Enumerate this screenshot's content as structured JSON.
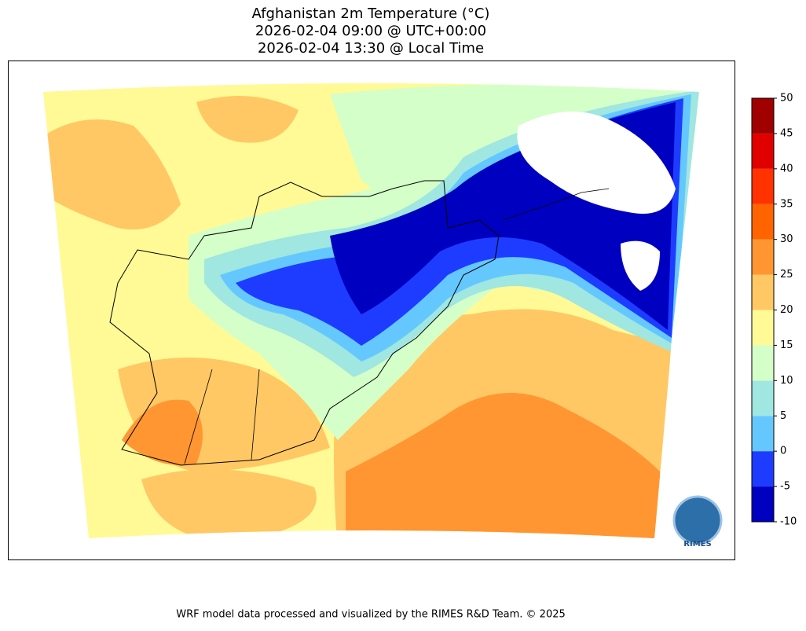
{
  "header": {
    "title_lines": [
      "Afghanistan 2m Temperature (°C)",
      "2026-02-04 09:00 @ UTC+00:00",
      "2026-02-04 13:30 @ Local Time"
    ]
  },
  "colorbar": {
    "ticks": [
      -10,
      -5,
      0,
      5,
      10,
      15,
      20,
      25,
      30,
      35,
      40,
      45,
      50
    ],
    "colors": [
      "#0000c0",
      "#1e3cff",
      "#64c8ff",
      "#a0e6e1",
      "#d4ffc8",
      "#fffa96",
      "#ffc864",
      "#ff9632",
      "#ff6400",
      "#ff3200",
      "#e10000",
      "#a00000"
    ]
  },
  "logo": {
    "text": "RIMES"
  },
  "footer": {
    "text": "WRF model data processed and visualized by the RIMES R&D Team. © 2025"
  }
}
